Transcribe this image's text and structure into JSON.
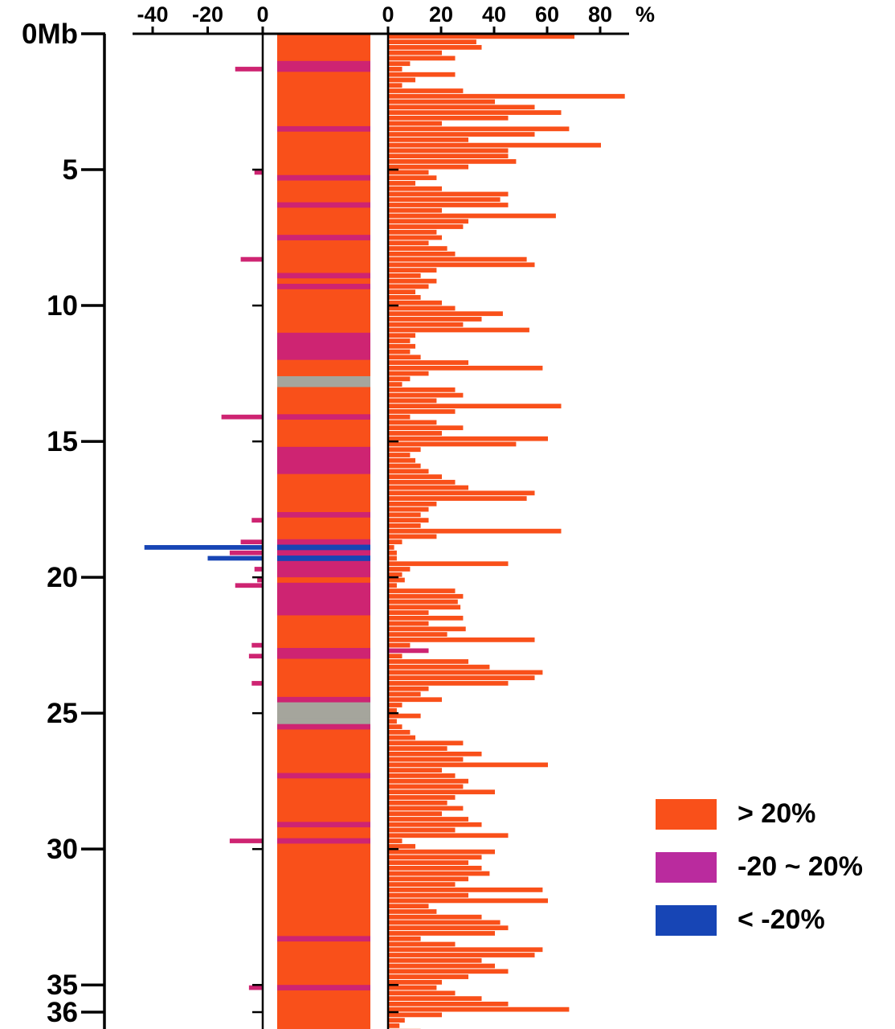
{
  "chart_data": {
    "type": "bar",
    "orientation": "horizontal-diverging",
    "genome_axis": {
      "unit": "Mb",
      "range": [
        0,
        37
      ],
      "ticks": [
        [
          0,
          "0Mb"
        ],
        [
          5,
          "5"
        ],
        [
          10,
          "10"
        ],
        [
          15,
          "15"
        ],
        [
          20,
          "20"
        ],
        [
          25,
          "25"
        ],
        [
          30,
          "30"
        ],
        [
          35,
          "35"
        ],
        [
          36,
          "36"
        ]
      ]
    },
    "value_axis": {
      "unit_label": "%",
      "left_range": [
        -46,
        0
      ],
      "right_range": [
        0,
        92
      ],
      "left_ticks": [
        [
          -40,
          "-40"
        ],
        [
          -20,
          "-20"
        ],
        [
          0,
          "0"
        ]
      ],
      "right_ticks": [
        [
          0,
          "0"
        ],
        [
          20,
          "20"
        ],
        [
          40,
          "40"
        ],
        [
          60,
          "60"
        ],
        [
          80,
          "80"
        ]
      ]
    },
    "legend": [
      {
        "key": "gain",
        "label": "> 20%",
        "color": "#F9501A"
      },
      {
        "key": "mid",
        "label": "-20 ~ 20%",
        "color": "#BA2B9E"
      },
      {
        "key": "loss",
        "label": "< -20%",
        "color": "#1745B5"
      }
    ],
    "colors": {
      "o": "#F9501A",
      "m": "#CE2472",
      "g": "#A5A59C",
      "b": "#1745B5",
      "axis": "#000000"
    },
    "row_span_mb": 0.2,
    "rows": [
      [
        0.0,
        0,
        70,
        "o"
      ],
      [
        0.2,
        0,
        33,
        "o"
      ],
      [
        0.4,
        0,
        35,
        "o"
      ],
      [
        0.6,
        0,
        20,
        "o"
      ],
      [
        0.8,
        0,
        25,
        "o"
      ],
      [
        1.0,
        0,
        8,
        "m"
      ],
      [
        1.2,
        -10,
        5,
        "m"
      ],
      [
        1.4,
        0,
        25,
        "o"
      ],
      [
        1.6,
        0,
        10,
        "o"
      ],
      [
        1.8,
        0,
        5,
        "o"
      ],
      [
        2.0,
        0,
        28,
        "o"
      ],
      [
        2.2,
        0,
        89,
        "o"
      ],
      [
        2.4,
        0,
        40,
        "o"
      ],
      [
        2.6,
        0,
        55,
        "o"
      ],
      [
        2.8,
        0,
        65,
        "o"
      ],
      [
        3.0,
        0,
        45,
        "o"
      ],
      [
        3.2,
        0,
        20,
        "o"
      ],
      [
        3.4,
        0,
        68,
        "m"
      ],
      [
        3.6,
        0,
        55,
        "o"
      ],
      [
        3.8,
        0,
        30,
        "o"
      ],
      [
        4.0,
        0,
        80,
        "o"
      ],
      [
        4.2,
        0,
        45,
        "o"
      ],
      [
        4.4,
        0,
        45,
        "o"
      ],
      [
        4.6,
        0,
        48,
        "o"
      ],
      [
        4.8,
        0,
        30,
        "o"
      ],
      [
        5.0,
        -3,
        15,
        "o"
      ],
      [
        5.2,
        0,
        18,
        "m"
      ],
      [
        5.4,
        0,
        10,
        "o"
      ],
      [
        5.6,
        0,
        20,
        "o"
      ],
      [
        5.8,
        0,
        45,
        "o"
      ],
      [
        6.0,
        0,
        42,
        "o"
      ],
      [
        6.2,
        0,
        45,
        "m"
      ],
      [
        6.4,
        0,
        20,
        "o"
      ],
      [
        6.6,
        0,
        63,
        "o"
      ],
      [
        6.8,
        0,
        30,
        "o"
      ],
      [
        7.0,
        0,
        28,
        "o"
      ],
      [
        7.2,
        0,
        18,
        "o"
      ],
      [
        7.4,
        0,
        20,
        "m"
      ],
      [
        7.6,
        0,
        15,
        "o"
      ],
      [
        7.8,
        0,
        22,
        "o"
      ],
      [
        8.0,
        0,
        25,
        "o"
      ],
      [
        8.2,
        -8,
        52,
        "o"
      ],
      [
        8.4,
        0,
        55,
        "o"
      ],
      [
        8.6,
        0,
        18,
        "o"
      ],
      [
        8.8,
        0,
        12,
        "m"
      ],
      [
        9.0,
        0,
        18,
        "o"
      ],
      [
        9.2,
        0,
        15,
        "m"
      ],
      [
        9.4,
        0,
        10,
        "o"
      ],
      [
        9.6,
        0,
        12,
        "o"
      ],
      [
        9.8,
        0,
        20,
        "o"
      ],
      [
        10.0,
        0,
        25,
        "o"
      ],
      [
        10.2,
        0,
        43,
        "o"
      ],
      [
        10.4,
        0,
        35,
        "o"
      ],
      [
        10.6,
        0,
        28,
        "o"
      ],
      [
        10.8,
        0,
        53,
        "o"
      ],
      [
        11.0,
        0,
        10,
        "m"
      ],
      [
        11.2,
        0,
        8,
        "m"
      ],
      [
        11.4,
        0,
        10,
        "m"
      ],
      [
        11.6,
        0,
        8,
        "m"
      ],
      [
        11.8,
        0,
        12,
        "m"
      ],
      [
        12.0,
        0,
        30,
        "o"
      ],
      [
        12.2,
        0,
        58,
        "o"
      ],
      [
        12.4,
        0,
        15,
        "o"
      ],
      [
        12.6,
        0,
        8,
        "g"
      ],
      [
        12.8,
        0,
        5,
        "g"
      ],
      [
        13.0,
        0,
        25,
        "o"
      ],
      [
        13.2,
        0,
        28,
        "o"
      ],
      [
        13.4,
        0,
        18,
        "o"
      ],
      [
        13.6,
        0,
        65,
        "o"
      ],
      [
        13.8,
        0,
        25,
        "o"
      ],
      [
        14.0,
        -15,
        8,
        "m"
      ],
      [
        14.2,
        0,
        18,
        "o"
      ],
      [
        14.4,
        0,
        28,
        "o"
      ],
      [
        14.6,
        0,
        20,
        "o"
      ],
      [
        14.8,
        0,
        60,
        "o"
      ],
      [
        15.0,
        0,
        48,
        "o"
      ],
      [
        15.2,
        0,
        12,
        "m"
      ],
      [
        15.4,
        0,
        8,
        "m"
      ],
      [
        15.6,
        0,
        10,
        "m"
      ],
      [
        15.8,
        0,
        12,
        "m"
      ],
      [
        16.0,
        0,
        15,
        "m"
      ],
      [
        16.2,
        0,
        20,
        "o"
      ],
      [
        16.4,
        0,
        25,
        "o"
      ],
      [
        16.6,
        0,
        30,
        "o"
      ],
      [
        16.8,
        0,
        55,
        "o"
      ],
      [
        17.0,
        0,
        52,
        "o"
      ],
      [
        17.2,
        0,
        18,
        "o"
      ],
      [
        17.4,
        0,
        15,
        "o"
      ],
      [
        17.6,
        0,
        12,
        "m"
      ],
      [
        17.8,
        -4,
        15,
        "o"
      ],
      [
        18.0,
        0,
        12,
        "o"
      ],
      [
        18.2,
        0,
        65,
        "o"
      ],
      [
        18.4,
        0,
        18,
        "o"
      ],
      [
        18.6,
        -8,
        5,
        "m"
      ],
      [
        18.8,
        -43,
        2,
        "b",
        "lb"
      ],
      [
        19.0,
        -12,
        3,
        "m"
      ],
      [
        19.2,
        -20,
        3,
        "b",
        "lb"
      ],
      [
        19.4,
        0,
        45,
        "m"
      ],
      [
        19.6,
        -3,
        8,
        "m"
      ],
      [
        19.8,
        0,
        5,
        "m"
      ],
      [
        20.0,
        -2,
        6,
        "o"
      ],
      [
        20.2,
        -10,
        3,
        "m"
      ],
      [
        20.4,
        0,
        25,
        "m"
      ],
      [
        20.6,
        0,
        28,
        "m"
      ],
      [
        20.8,
        0,
        26,
        "m"
      ],
      [
        21.0,
        0,
        27,
        "m"
      ],
      [
        21.2,
        0,
        15,
        "m"
      ],
      [
        21.4,
        0,
        28,
        "o"
      ],
      [
        21.6,
        0,
        15,
        "o"
      ],
      [
        21.8,
        0,
        29,
        "o"
      ],
      [
        22.0,
        0,
        22,
        "o"
      ],
      [
        22.2,
        0,
        55,
        "o"
      ],
      [
        22.4,
        -4,
        8,
        "o"
      ],
      [
        22.6,
        0,
        15,
        "m",
        "rm"
      ],
      [
        22.8,
        -5,
        5,
        "m"
      ],
      [
        23.0,
        0,
        30,
        "o"
      ],
      [
        23.2,
        0,
        38,
        "o"
      ],
      [
        23.4,
        0,
        58,
        "o"
      ],
      [
        23.6,
        0,
        55,
        "o"
      ],
      [
        23.8,
        -4,
        45,
        "o"
      ],
      [
        24.0,
        0,
        15,
        "o"
      ],
      [
        24.2,
        0,
        12,
        "o"
      ],
      [
        24.4,
        0,
        20,
        "m"
      ],
      [
        24.6,
        0,
        5,
        "g"
      ],
      [
        24.8,
        0,
        3,
        "g"
      ],
      [
        25.0,
        0,
        12,
        "g"
      ],
      [
        25.2,
        0,
        3,
        "g"
      ],
      [
        25.4,
        0,
        5,
        "m"
      ],
      [
        25.6,
        0,
        8,
        "o"
      ],
      [
        25.8,
        0,
        10,
        "o"
      ],
      [
        26.0,
        0,
        28,
        "o"
      ],
      [
        26.2,
        0,
        22,
        "o"
      ],
      [
        26.4,
        0,
        35,
        "o"
      ],
      [
        26.6,
        0,
        28,
        "o"
      ],
      [
        26.8,
        0,
        60,
        "o"
      ],
      [
        27.0,
        0,
        20,
        "o"
      ],
      [
        27.2,
        0,
        25,
        "m"
      ],
      [
        27.4,
        0,
        30,
        "o"
      ],
      [
        27.6,
        0,
        28,
        "o"
      ],
      [
        27.8,
        0,
        40,
        "o"
      ],
      [
        28.0,
        0,
        25,
        "o"
      ],
      [
        28.2,
        0,
        22,
        "o"
      ],
      [
        28.4,
        0,
        28,
        "o"
      ],
      [
        28.6,
        0,
        20,
        "o"
      ],
      [
        28.8,
        0,
        30,
        "o"
      ],
      [
        29.0,
        0,
        35,
        "m"
      ],
      [
        29.2,
        0,
        25,
        "o"
      ],
      [
        29.4,
        0,
        45,
        "o"
      ],
      [
        29.6,
        -12,
        5,
        "m"
      ],
      [
        29.8,
        0,
        10,
        "o"
      ],
      [
        30.0,
        0,
        40,
        "o"
      ],
      [
        30.2,
        0,
        35,
        "o"
      ],
      [
        30.4,
        0,
        30,
        "o"
      ],
      [
        30.6,
        0,
        35,
        "o"
      ],
      [
        30.8,
        0,
        38,
        "o"
      ],
      [
        31.0,
        0,
        30,
        "o"
      ],
      [
        31.2,
        0,
        25,
        "o"
      ],
      [
        31.4,
        0,
        58,
        "o"
      ],
      [
        31.6,
        0,
        30,
        "o"
      ],
      [
        31.8,
        0,
        60,
        "o"
      ],
      [
        32.0,
        0,
        15,
        "o"
      ],
      [
        32.2,
        0,
        18,
        "o"
      ],
      [
        32.4,
        0,
        35,
        "o"
      ],
      [
        32.6,
        0,
        42,
        "o"
      ],
      [
        32.8,
        0,
        45,
        "o"
      ],
      [
        33.0,
        0,
        40,
        "o"
      ],
      [
        33.2,
        0,
        12,
        "m"
      ],
      [
        33.4,
        0,
        25,
        "o"
      ],
      [
        33.6,
        0,
        58,
        "o"
      ],
      [
        33.8,
        0,
        55,
        "o"
      ],
      [
        34.0,
        0,
        35,
        "o"
      ],
      [
        34.2,
        0,
        40,
        "o"
      ],
      [
        34.4,
        0,
        45,
        "o"
      ],
      [
        34.6,
        0,
        30,
        "o"
      ],
      [
        34.8,
        0,
        20,
        "o"
      ],
      [
        35.0,
        -5,
        18,
        "m"
      ],
      [
        35.2,
        0,
        25,
        "o"
      ],
      [
        35.4,
        0,
        35,
        "o"
      ],
      [
        35.6,
        0,
        45,
        "o"
      ],
      [
        35.8,
        0,
        68,
        "o"
      ],
      [
        36.0,
        0,
        20,
        "o"
      ],
      [
        36.2,
        0,
        6,
        "o"
      ],
      [
        36.4,
        0,
        4,
        "o"
      ],
      [
        36.6,
        0,
        12,
        "o"
      ],
      [
        36.8,
        0,
        20,
        "m",
        "rm"
      ]
    ]
  }
}
